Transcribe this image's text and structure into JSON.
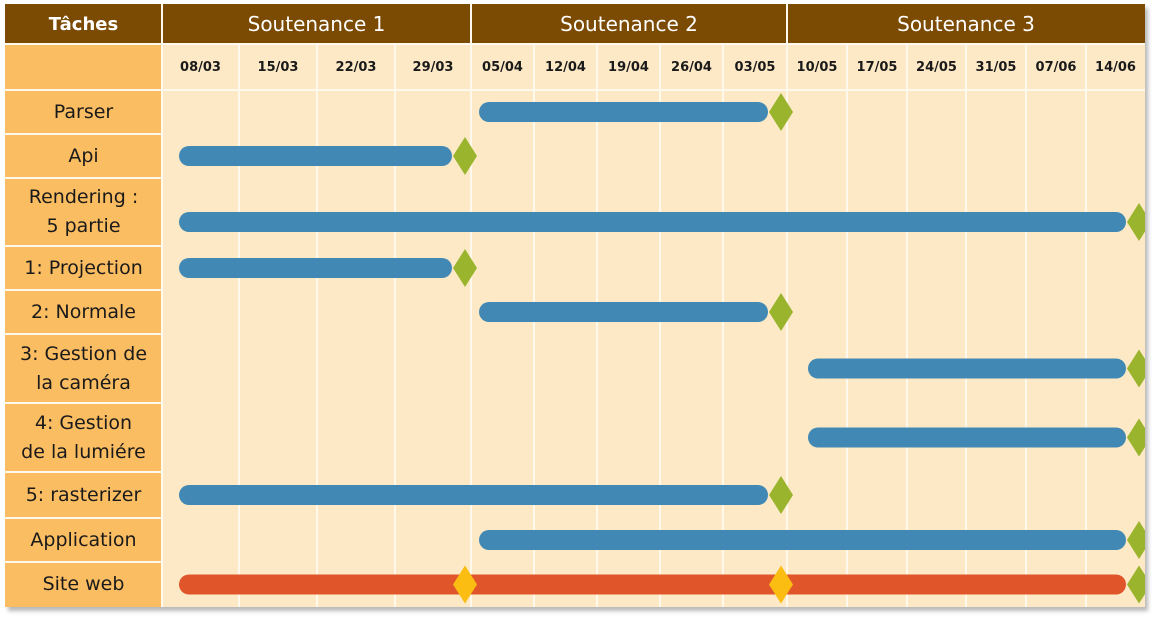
{
  "header": {
    "tasks_title": "Tâches",
    "phases": [
      "Soutenance 1",
      "Soutenance 2",
      "Soutenance 3"
    ]
  },
  "dates": [
    "08/03",
    "15/03",
    "22/03",
    "29/03",
    "05/04",
    "12/04",
    "19/04",
    "26/04",
    "03/05",
    "10/05",
    "17/05",
    "24/05",
    "31/05",
    "07/06",
    "14/06"
  ],
  "tasks": [
    {
      "label": "Parser"
    },
    {
      "label": "Api"
    },
    {
      "label": "Rendering :\n5 partie"
    },
    {
      "label": "1: Projection"
    },
    {
      "label": "2: Normale"
    },
    {
      "label": "3: Gestion de\nla caméra"
    },
    {
      "label": "4: Gestion\nde la lumiére"
    },
    {
      "label": "5: rasterizer"
    },
    {
      "label": "Application"
    },
    {
      "label": "Site web"
    }
  ],
  "chart_data": {
    "type": "gantt",
    "columns": [
      "08/03",
      "15/03",
      "22/03",
      "29/03",
      "05/04",
      "12/04",
      "19/04",
      "26/04",
      "03/05",
      "10/05",
      "17/05",
      "24/05",
      "31/05",
      "07/06",
      "14/06"
    ],
    "phases": [
      {
        "name": "Soutenance 1",
        "from": "08/03",
        "to": "29/03"
      },
      {
        "name": "Soutenance 2",
        "from": "05/04",
        "to": "03/05"
      },
      {
        "name": "Soutenance 3",
        "from": "10/05",
        "to": "14/06"
      }
    ],
    "tasks": [
      {
        "name": "Parser",
        "start": "05/04",
        "end": "03/05",
        "milestones": [
          "03/05"
        ]
      },
      {
        "name": "Api",
        "start": "08/03",
        "end": "29/03",
        "milestones": [
          "29/03"
        ]
      },
      {
        "name": "Rendering : 5 partie",
        "start": "08/03",
        "end": "14/06",
        "milestones": [
          "14/06"
        ]
      },
      {
        "name": "1: Projection",
        "start": "08/03",
        "end": "29/03",
        "milestones": [
          "29/03"
        ]
      },
      {
        "name": "2: Normale",
        "start": "05/04",
        "end": "03/05",
        "milestones": [
          "03/05"
        ]
      },
      {
        "name": "3: Gestion de la caméra",
        "start": "10/05",
        "end": "14/06",
        "milestones": [
          "14/06"
        ]
      },
      {
        "name": "4: Gestion de la lumiére",
        "start": "10/05",
        "end": "14/06",
        "milestones": [
          "14/06"
        ]
      },
      {
        "name": "5: rasterizer",
        "start": "08/03",
        "end": "03/05",
        "milestones": [
          "03/05"
        ]
      },
      {
        "name": "Application",
        "start": "05/04",
        "end": "14/06",
        "milestones": [
          "14/06"
        ]
      },
      {
        "name": "Site web",
        "start": "08/03",
        "end": "14/06",
        "milestones": [
          "29/03",
          "03/05",
          "14/06"
        ],
        "highlight_milestones": [
          "29/03",
          "03/05"
        ]
      }
    ],
    "colors": {
      "header_bg": "#7b4a03",
      "task_bg": "#fbbd62",
      "grid_bg": "#fde9c6",
      "bar": "#4189b4",
      "bar_highlight": "#e0552a",
      "milestone": "#9ab42d",
      "milestone_highlight": "#fbbd12"
    }
  }
}
